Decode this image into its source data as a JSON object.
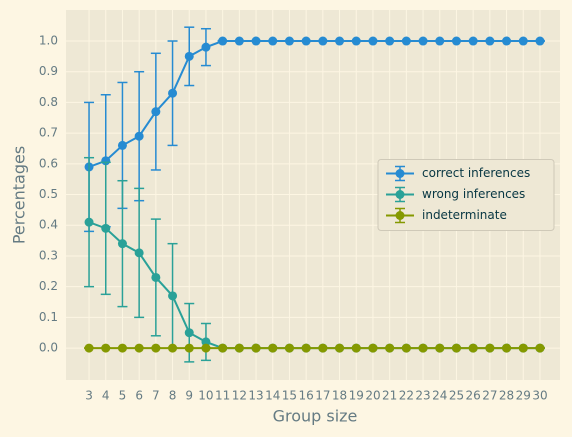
{
  "chart_data": {
    "type": "line",
    "x_label": "Group size",
    "y_label": "Percentages",
    "x": [
      3,
      4,
      5,
      6,
      7,
      8,
      9,
      10,
      11,
      12,
      13,
      14,
      15,
      16,
      17,
      18,
      19,
      20,
      21,
      22,
      23,
      24,
      25,
      26,
      27,
      28,
      29,
      30
    ],
    "xticks": [
      3,
      4,
      5,
      6,
      7,
      8,
      9,
      10,
      11,
      12,
      13,
      14,
      15,
      16,
      17,
      18,
      19,
      20,
      21,
      22,
      23,
      24,
      25,
      26,
      27,
      28,
      29,
      30
    ],
    "xlim": [
      1.62,
      31.2
    ],
    "ylim": [
      -0.104,
      1.101
    ],
    "yticks": [
      {
        "value": 0,
        "label": "0.0"
      },
      0.1,
      0.2,
      0.3,
      0.4,
      0.5,
      0.6,
      0.7,
      0.8,
      0.9,
      {
        "value": 1,
        "label": "1.0"
      }
    ],
    "grid": true,
    "legend": "center right",
    "series": [
      {
        "name": "correct inferences",
        "color": "#268bd2",
        "values": [
          0.59,
          0.61,
          0.66,
          0.69,
          0.77,
          0.83,
          0.95,
          0.98,
          1,
          1,
          1,
          1,
          1,
          1,
          1,
          1,
          1,
          1,
          1,
          1,
          1,
          1,
          1,
          1,
          1,
          1,
          1,
          1
        ],
        "errors": [
          0.21,
          0.215,
          0.205,
          0.21,
          0.19,
          0.17,
          0.095,
          0.06,
          0,
          0,
          0,
          0,
          0,
          0,
          0,
          0,
          0,
          0,
          0,
          0,
          0,
          0,
          0,
          0,
          0,
          0,
          0,
          0
        ]
      },
      {
        "name": "wrong inferences",
        "color": "#2aa198",
        "values": [
          0.41,
          0.39,
          0.34,
          0.31,
          0.23,
          0.17,
          0.05,
          0.02,
          0,
          0,
          0,
          0,
          0,
          0,
          0,
          0,
          0,
          0,
          0,
          0,
          0,
          0,
          0,
          0,
          0,
          0,
          0,
          0
        ],
        "errors": [
          0.21,
          0.215,
          0.205,
          0.21,
          0.19,
          0.17,
          0.095,
          0.06,
          0,
          0,
          0,
          0,
          0,
          0,
          0,
          0,
          0,
          0,
          0,
          0,
          0,
          0,
          0,
          0,
          0,
          0,
          0,
          0
        ]
      },
      {
        "name": "indeterminate",
        "color": "#859900",
        "values": [
          0,
          0,
          0,
          0,
          0,
          0,
          0,
          0,
          0,
          0,
          0,
          0,
          0,
          0,
          0,
          0,
          0,
          0,
          0,
          0,
          0,
          0,
          0,
          0,
          0,
          0,
          0,
          0
        ],
        "errors": [
          0,
          0,
          0,
          0,
          0,
          0,
          0,
          0,
          0,
          0,
          0,
          0,
          0,
          0,
          0,
          0,
          0,
          0,
          0,
          0,
          0,
          0,
          0,
          0,
          0,
          0,
          0,
          0
        ]
      }
    ]
  }
}
